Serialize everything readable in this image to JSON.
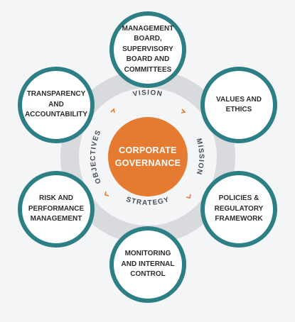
{
  "diagram": {
    "center": "CORPORATE\nGOVERNANCE",
    "ring_labels": {
      "vision": "VISION",
      "mission": "MISSION",
      "strategy": "STRATEGY",
      "objectives": "OBJECTIVES"
    },
    "nodes": [
      {
        "label": "MANAGEMENT\nBOARD,\nSUPERVISORY\nBOARD AND\nCOMMITTEES"
      },
      {
        "label": "VALUES AND\nETHICS"
      },
      {
        "label": "POLICIES &\nREGULATORY\nFRAMEWORK"
      },
      {
        "label": "MONITORING\nAND INTERNAL\nCONTROL"
      },
      {
        "label": "RISK AND\nPERFORMANCE\nMANAGEMENT"
      },
      {
        "label": "TRANSPARENCY\nAND\nACCOUNTABILITY"
      }
    ],
    "colors": {
      "node_border": "#2d7f86",
      "ring": "#d9dadd",
      "center_fill": "#e57a30",
      "arrow": "#e57a30"
    }
  }
}
